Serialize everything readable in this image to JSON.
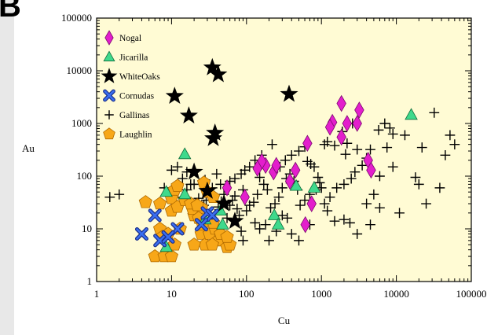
{
  "panel_label": "B",
  "chart_data": {
    "type": "scatter",
    "xlabel": "Cu",
    "ylabel": "Au",
    "x_scale": "log",
    "y_scale": "log",
    "xlim": [
      1,
      100000
    ],
    "ylim": [
      1,
      100000
    ],
    "x_tick_labels": [
      "1",
      "10",
      "100",
      "1000",
      "10000",
      "100000"
    ],
    "y_tick_labels": [
      "1",
      "10",
      "100",
      "1000",
      "10000",
      "100000"
    ],
    "grid": false,
    "background": "#fffbd4",
    "legend_position": "top-left",
    "series": [
      {
        "name": "Nogal",
        "marker": "diamond",
        "color": "#e31ecc",
        "points": [
          [
            1850,
            2400
          ],
          [
            1400,
            1050
          ],
          [
            1300,
            850
          ],
          [
            1850,
            550
          ],
          [
            2200,
            1000
          ],
          [
            3200,
            1800
          ],
          [
            3000,
            1000
          ],
          [
            4200,
            200
          ],
          [
            4600,
            130
          ],
          [
            650,
            420
          ],
          [
            450,
            130
          ],
          [
            380,
            80
          ],
          [
            230,
            120
          ],
          [
            180,
            160
          ],
          [
            160,
            190
          ],
          [
            140,
            140
          ],
          [
            95,
            40
          ],
          [
            55,
            60
          ],
          [
            740,
            30
          ],
          [
            610,
            12
          ],
          [
            250,
            160
          ]
        ]
      },
      {
        "name": "Jicarilla",
        "marker": "triangle",
        "color": "#3fd98c",
        "points": [
          [
            15800,
            1450
          ],
          [
            15,
            260
          ],
          [
            8.5,
            50
          ],
          [
            460,
            65
          ],
          [
            800,
            60
          ],
          [
            235,
            18
          ],
          [
            265,
            12
          ],
          [
            15,
            45
          ],
          [
            8.5,
            4.5
          ],
          [
            48,
            12
          ],
          [
            28,
            15
          ],
          [
            45,
            22
          ]
        ]
      },
      {
        "name": "WhiteOaks",
        "marker": "star",
        "color": "#000000",
        "points": [
          [
            35,
            11500
          ],
          [
            42,
            8500
          ],
          [
            11,
            3300
          ],
          [
            370,
            3600
          ],
          [
            17,
            1400
          ],
          [
            38,
            660
          ],
          [
            36,
            520
          ],
          [
            30,
            52
          ],
          [
            20,
            120
          ],
          [
            70,
            14
          ],
          [
            50,
            30
          ]
        ]
      },
      {
        "name": "Cornudas",
        "marker": "cross",
        "color": "#3a6ef0",
        "points": [
          [
            6,
            18
          ],
          [
            7,
            6
          ],
          [
            4,
            8
          ],
          [
            30,
            20
          ],
          [
            35,
            18
          ],
          [
            25,
            12
          ],
          [
            12,
            10
          ],
          [
            9,
            7
          ]
        ]
      },
      {
        "name": "Gallinas",
        "marker": "plus",
        "color": "#000000",
        "points": [
          [
            1500,
            380
          ],
          [
            1200,
            450
          ],
          [
            1900,
            700
          ],
          [
            2600,
            1000
          ],
          [
            3000,
            320
          ],
          [
            5800,
            750
          ],
          [
            7000,
            1000
          ],
          [
            8200,
            820
          ],
          [
            9000,
            630
          ],
          [
            13000,
            600
          ],
          [
            20000,
            70
          ],
          [
            22000,
            350
          ],
          [
            32000,
            1600
          ],
          [
            45000,
            250
          ],
          [
            52000,
            600
          ],
          [
            60000,
            400
          ],
          [
            9000,
            150
          ],
          [
            6000,
            100
          ],
          [
            4000,
            220
          ],
          [
            3500,
            160
          ],
          [
            2800,
            120
          ],
          [
            2500,
            90
          ],
          [
            2000,
            70
          ],
          [
            1600,
            60
          ],
          [
            1300,
            40
          ],
          [
            1100,
            30
          ],
          [
            950,
            75
          ],
          [
            850,
            55
          ],
          [
            700,
            45
          ],
          [
            600,
            35
          ],
          [
            520,
            28
          ],
          [
            480,
            55
          ],
          [
            430,
            80
          ],
          [
            380,
            110
          ],
          [
            340,
            90
          ],
          [
            300,
            60
          ],
          [
            270,
            40
          ],
          [
            240,
            30
          ],
          [
            210,
            25
          ],
          [
            190,
            55
          ],
          [
            170,
            70
          ],
          [
            150,
            95
          ],
          [
            140,
            45
          ],
          [
            125,
            32
          ],
          [
            110,
            28
          ],
          [
            100,
            22
          ],
          [
            90,
            55
          ],
          [
            80,
            18
          ],
          [
            75,
            24
          ],
          [
            70,
            42
          ],
          [
            65,
            35
          ],
          [
            60,
            28
          ],
          [
            55,
            16
          ],
          [
            50,
            45
          ],
          [
            46,
            33
          ],
          [
            42,
            26
          ],
          [
            38,
            19
          ],
          [
            35,
            60
          ],
          [
            32,
            48
          ],
          [
            29,
            35
          ],
          [
            27,
            28
          ],
          [
            25,
            22
          ],
          [
            23,
            38
          ],
          [
            21,
            30
          ],
          [
            19,
            25
          ],
          [
            18,
            70
          ],
          [
            16,
            55
          ],
          [
            14,
            40
          ],
          [
            13,
            33
          ],
          [
            12,
            28
          ],
          [
            11,
            50
          ],
          [
            10,
            130
          ],
          [
            8,
            60
          ],
          [
            2,
            45
          ],
          [
            1.5,
            40
          ],
          [
            4000,
            30
          ],
          [
            1000,
            60
          ],
          [
            800,
            150
          ],
          [
            1100,
            400
          ],
          [
            2200,
            420
          ],
          [
            600,
            360
          ],
          [
            500,
            300
          ],
          [
            400,
            250
          ],
          [
            330,
            200
          ],
          [
            280,
            150
          ],
          [
            220,
            400
          ],
          [
            160,
            250
          ],
          [
            130,
            200
          ],
          [
            110,
            150
          ],
          [
            95,
            130
          ],
          [
            85,
            110
          ],
          [
            70,
            90
          ],
          [
            60,
            80
          ],
          [
            45,
            70
          ],
          [
            40,
            110
          ],
          [
            28,
            85
          ],
          [
            20,
            70
          ],
          [
            16,
            120
          ],
          [
            14,
            90
          ],
          [
            12,
            150
          ],
          [
            4500,
            320
          ],
          [
            7500,
            350
          ],
          [
            11000,
            20
          ],
          [
            18000,
            95
          ],
          [
            25000,
            30
          ],
          [
            38000,
            60
          ],
          [
            500,
            6
          ],
          [
            400,
            8
          ],
          [
            350,
            16
          ],
          [
            700,
            12
          ],
          [
            1500,
            14
          ],
          [
            2000,
            15
          ],
          [
            4500,
            12
          ],
          [
            6000,
            25
          ],
          [
            2400,
            13
          ],
          [
            200,
            6
          ],
          [
            150,
            10
          ],
          [
            90,
            6
          ],
          [
            85,
            9
          ],
          [
            130,
            13
          ],
          [
            180,
            12
          ],
          [
            250,
            9
          ],
          [
            300,
            18
          ],
          [
            3000,
            8
          ],
          [
            5000,
            45
          ],
          [
            1200,
            22
          ],
          [
            900,
            95
          ],
          [
            650,
            190
          ],
          [
            720,
            170
          ],
          [
            2100,
            260
          ]
        ]
      },
      {
        "name": "Laughlin",
        "marker": "pentagon",
        "color": "#f7a718",
        "points": [
          [
            4.5,
            32
          ],
          [
            7,
            30
          ],
          [
            10,
            38
          ],
          [
            11,
            55
          ],
          [
            12,
            65
          ],
          [
            10,
            22
          ],
          [
            12,
            26
          ],
          [
            20,
            18
          ],
          [
            25,
            25
          ],
          [
            27,
            75
          ],
          [
            30,
            50
          ],
          [
            36,
            40
          ],
          [
            7,
            10
          ],
          [
            9,
            8
          ],
          [
            11,
            5
          ],
          [
            13,
            10
          ],
          [
            19,
            24
          ],
          [
            23,
            16
          ],
          [
            25,
            8
          ],
          [
            28,
            5
          ],
          [
            32,
            8
          ],
          [
            38,
            10
          ],
          [
            42,
            6
          ],
          [
            35,
            5
          ],
          [
            55,
            4.5
          ],
          [
            60,
            5
          ],
          [
            6,
            3
          ],
          [
            8,
            3
          ],
          [
            10,
            3
          ],
          [
            7.5,
            7
          ],
          [
            15,
            35
          ],
          [
            18,
            30
          ],
          [
            26,
            12
          ],
          [
            45,
            8
          ],
          [
            55,
            7
          ],
          [
            20,
            5
          ],
          [
            36,
            13
          ],
          [
            22,
            28
          ]
        ]
      }
    ]
  }
}
